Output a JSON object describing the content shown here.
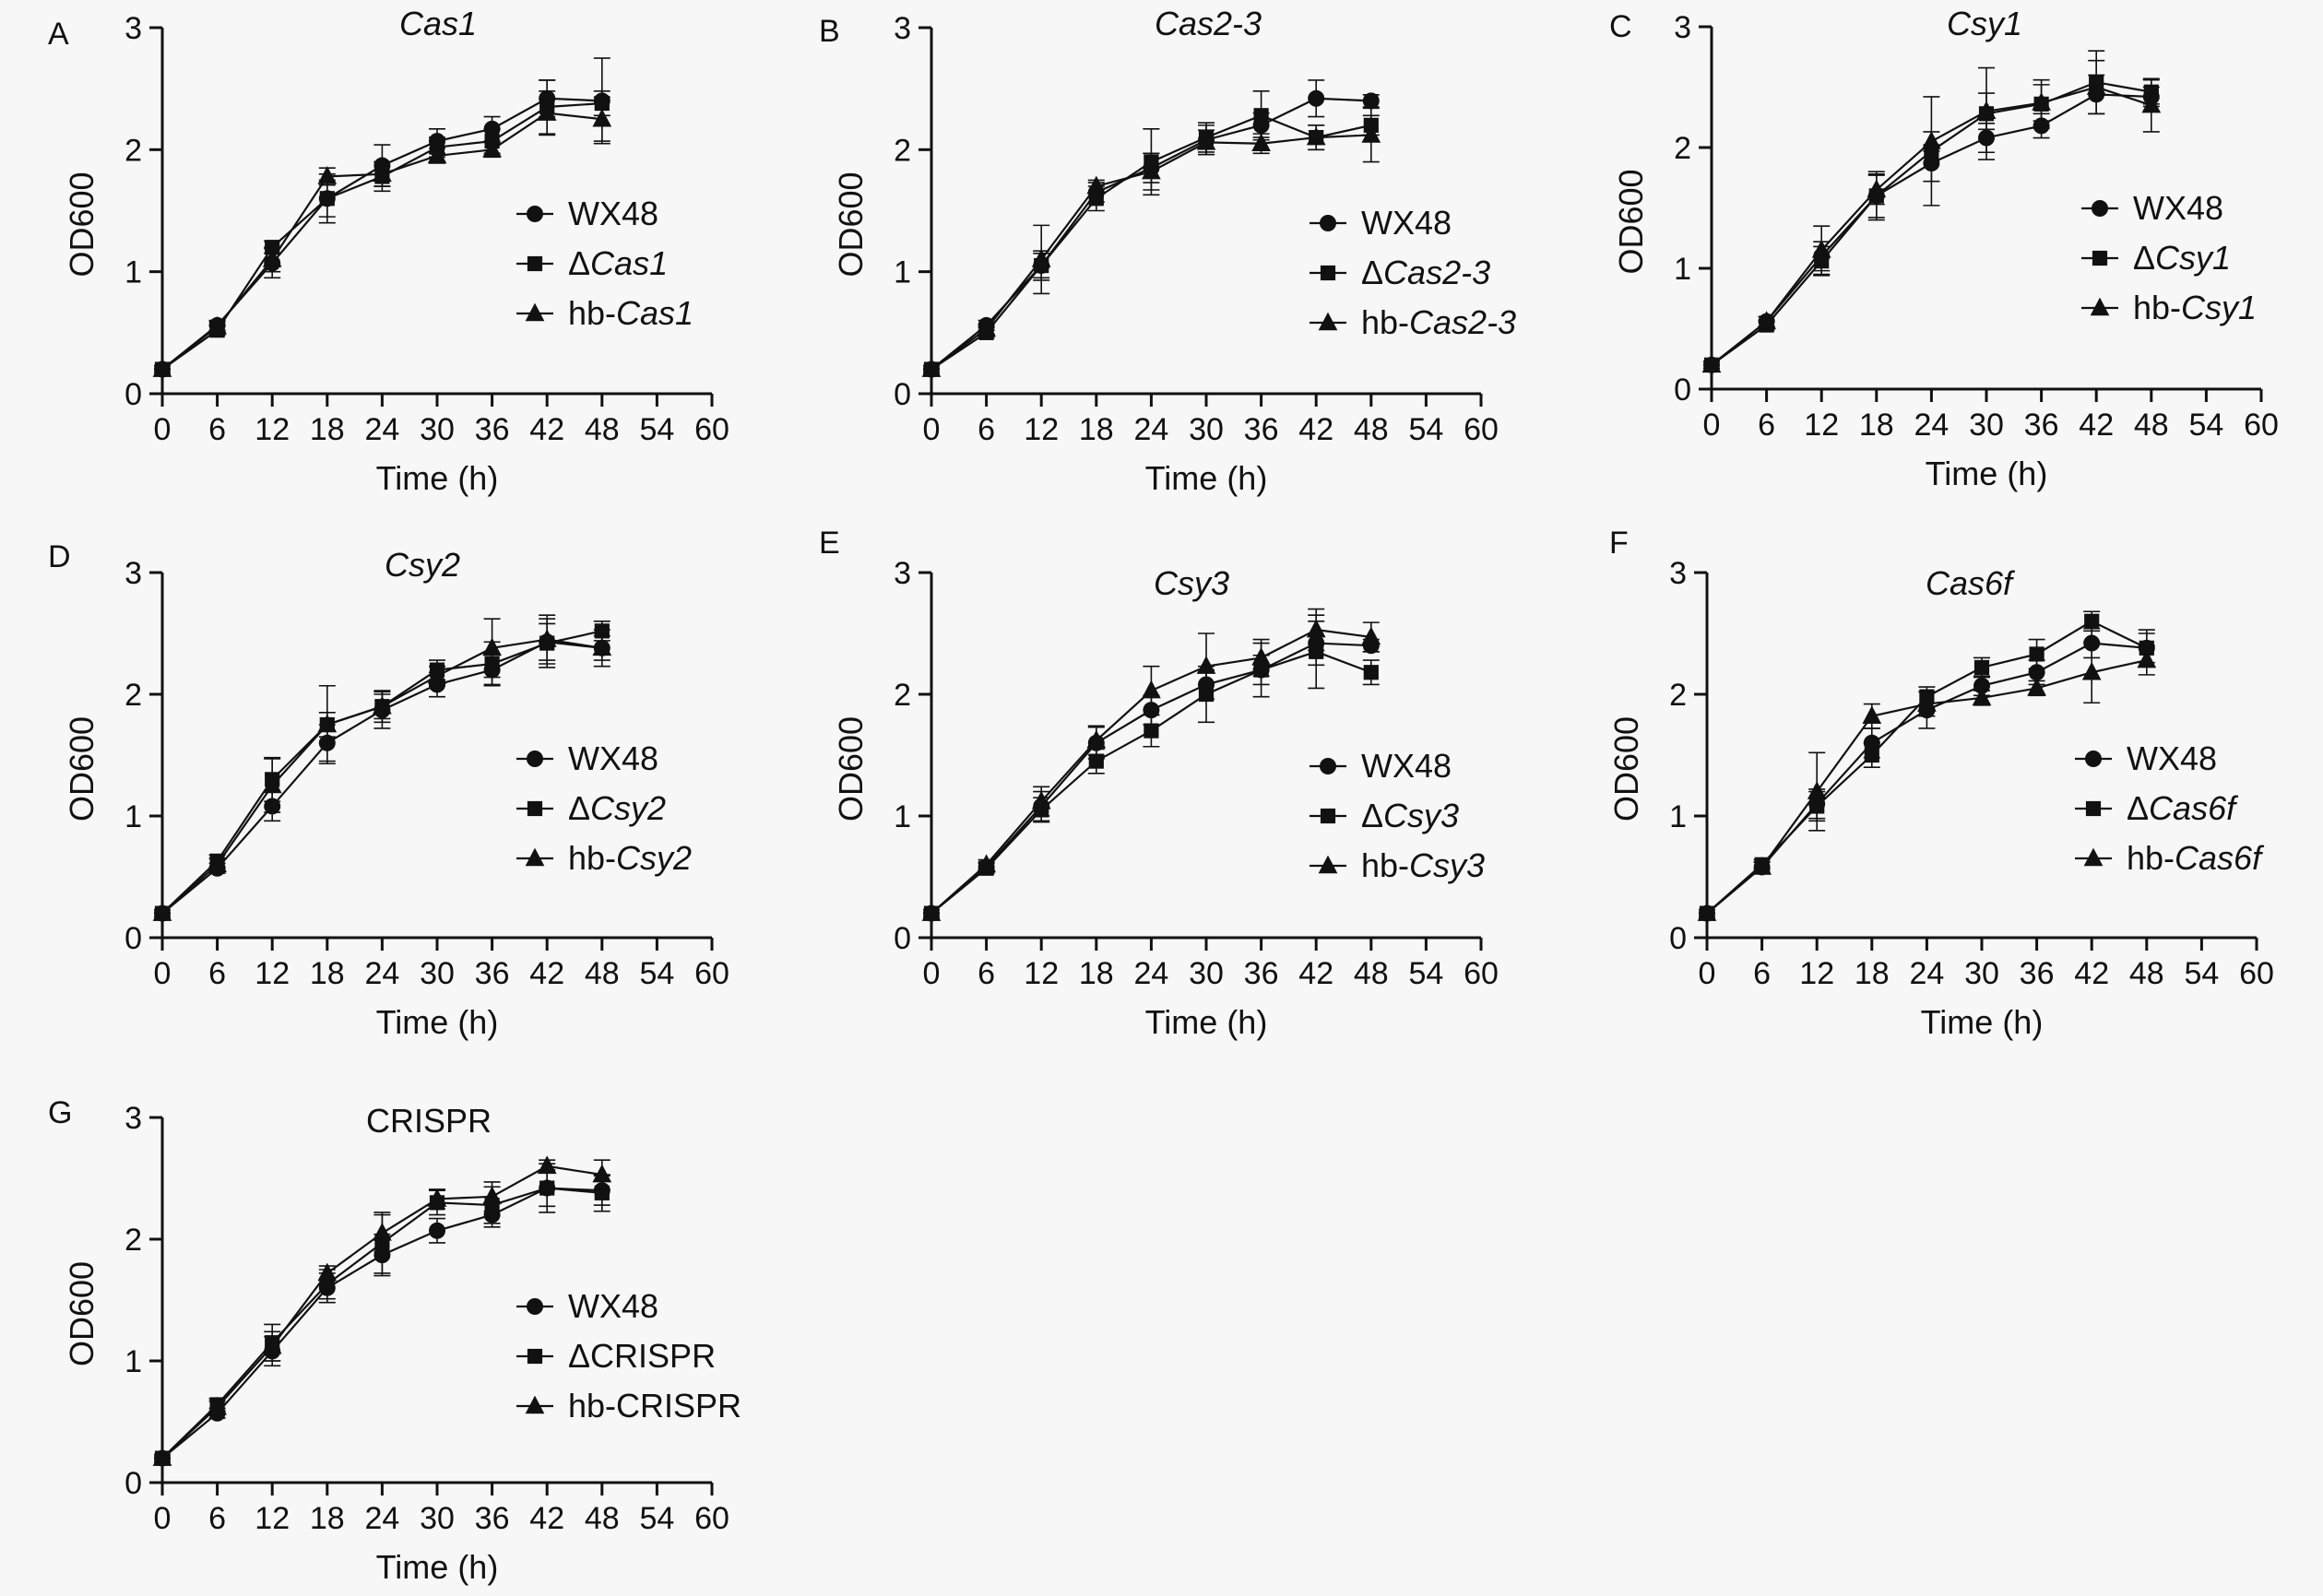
{
  "chart_data": [
    {
      "panel": "A",
      "type": "line",
      "title": "Cas1",
      "title_italic": true,
      "xlabel": "Time (h)",
      "ylabel": "OD600",
      "xlim": [
        0,
        60
      ],
      "ylim": [
        0,
        3
      ],
      "xticks": [
        0,
        6,
        12,
        18,
        24,
        30,
        36,
        42,
        48,
        54,
        60
      ],
      "yticks": [
        0,
        1,
        2,
        3
      ],
      "grid": false,
      "legend_position": "center-right",
      "x": [
        0,
        6,
        12,
        18,
        24,
        30,
        36,
        42,
        48
      ],
      "series": [
        {
          "name": "WX48",
          "prefix": "",
          "gene": "",
          "marker": "circle",
          "values": [
            0.2,
            0.56,
            1.07,
            1.6,
            1.87,
            2.07,
            2.17,
            2.42,
            2.4
          ],
          "errors": [
            0.03,
            0.04,
            0.12,
            0.2,
            0.17,
            0.1,
            0.1,
            0.15,
            0.35
          ]
        },
        {
          "name": "ΔCas1",
          "prefix": "Δ",
          "gene": "Cas1",
          "marker": "square",
          "values": [
            0.2,
            0.52,
            1.2,
            1.6,
            1.78,
            2.02,
            2.07,
            2.35,
            2.38
          ],
          "errors": [
            0.03,
            0.04,
            0.05,
            0.15,
            0.12,
            0.08,
            0.1,
            0.22,
            0.1
          ]
        },
        {
          "name": "hb-Cas1",
          "prefix": "hb-",
          "gene": "Cas1",
          "marker": "triangle",
          "values": [
            0.2,
            0.55,
            1.1,
            1.78,
            1.8,
            1.95,
            2.0,
            2.3,
            2.25
          ],
          "errors": [
            0.03,
            0.04,
            0.1,
            0.07,
            0.1,
            0.06,
            0.06,
            0.18,
            0.18
          ]
        }
      ]
    },
    {
      "panel": "B",
      "type": "line",
      "title": "Cas2-3",
      "title_italic": true,
      "xlabel": "Time (h)",
      "ylabel": "OD600",
      "xlim": [
        0,
        60
      ],
      "ylim": [
        0,
        3
      ],
      "xticks": [
        0,
        6,
        12,
        18,
        24,
        30,
        36,
        42,
        48,
        54,
        60
      ],
      "yticks": [
        0,
        1,
        2,
        3
      ],
      "grid": false,
      "legend_position": "center-right",
      "x": [
        0,
        6,
        12,
        18,
        24,
        30,
        36,
        42,
        48
      ],
      "series": [
        {
          "name": "WX48",
          "prefix": "",
          "gene": "",
          "marker": "circle",
          "values": [
            0.2,
            0.56,
            1.05,
            1.65,
            1.85,
            2.08,
            2.2,
            2.42,
            2.4
          ],
          "errors": [
            0.03,
            0.04,
            0.1,
            0.08,
            0.12,
            0.12,
            0.1,
            0.15,
            0.05
          ]
        },
        {
          "name": "ΔCas2-3",
          "prefix": "Δ",
          "gene": "Cas2-3",
          "marker": "square",
          "values": [
            0.2,
            0.5,
            1.05,
            1.6,
            1.9,
            2.1,
            2.28,
            2.1,
            2.2
          ],
          "errors": [
            0.03,
            0.04,
            0.12,
            0.1,
            0.27,
            0.12,
            0.2,
            0.1,
            0.08
          ]
        },
        {
          "name": "hb-Cas2-3",
          "prefix": "hb-",
          "gene": "Cas2-3",
          "marker": "triangle",
          "values": [
            0.2,
            0.53,
            1.1,
            1.7,
            1.82,
            2.06,
            2.05,
            2.1,
            2.12
          ],
          "errors": [
            0.03,
            0.04,
            0.28,
            0.05,
            0.15,
            0.1,
            0.08,
            0.1,
            0.22
          ]
        }
      ]
    },
    {
      "panel": "C",
      "type": "line",
      "title": "Csy1",
      "title_italic": true,
      "xlabel": "Time (h)",
      "ylabel": "OD600",
      "xlim": [
        0,
        60
      ],
      "ylim": [
        0,
        3
      ],
      "xticks": [
        0,
        6,
        12,
        18,
        24,
        30,
        36,
        42,
        48,
        54,
        60
      ],
      "yticks": [
        0,
        1,
        2,
        3
      ],
      "grid": false,
      "legend_position": "center-right",
      "x": [
        0,
        6,
        12,
        18,
        24,
        30,
        36,
        42,
        48
      ],
      "series": [
        {
          "name": "WX48",
          "prefix": "",
          "gene": "",
          "marker": "circle",
          "values": [
            0.2,
            0.56,
            1.1,
            1.6,
            1.87,
            2.08,
            2.18,
            2.44,
            2.42
          ],
          "errors": [
            0.03,
            0.04,
            0.12,
            0.2,
            0.15,
            0.12,
            0.1,
            0.16,
            0.08
          ]
        },
        {
          "name": "ΔCsy1",
          "prefix": "Δ",
          "gene": "Csy1",
          "marker": "square",
          "values": [
            0.2,
            0.53,
            1.06,
            1.6,
            1.97,
            2.28,
            2.36,
            2.54,
            2.46
          ],
          "errors": [
            0.03,
            0.04,
            0.12,
            0.18,
            0.45,
            0.38,
            0.2,
            0.26,
            0.1
          ]
        },
        {
          "name": "hb-Csy1",
          "prefix": "hb-",
          "gene": "Csy1",
          "marker": "triangle",
          "values": [
            0.2,
            0.56,
            1.15,
            1.65,
            2.05,
            2.3,
            2.37,
            2.5,
            2.35
          ],
          "errors": [
            0.03,
            0.04,
            0.2,
            0.12,
            0.08,
            0.15,
            0.15,
            0.22,
            0.22
          ]
        }
      ]
    },
    {
      "panel": "D",
      "type": "line",
      "title": "Csy2",
      "title_italic": true,
      "xlabel": "Time (h)",
      "ylabel": "OD600",
      "xlim": [
        0,
        60
      ],
      "ylim": [
        0,
        3
      ],
      "xticks": [
        0,
        6,
        12,
        18,
        24,
        30,
        36,
        42,
        48,
        54,
        60
      ],
      "yticks": [
        0,
        1,
        2,
        3
      ],
      "grid": false,
      "legend_position": "center-right",
      "x": [
        0,
        6,
        12,
        18,
        24,
        30,
        36,
        42,
        48
      ],
      "series": [
        {
          "name": "WX48",
          "prefix": "",
          "gene": "",
          "marker": "circle",
          "values": [
            0.2,
            0.57,
            1.08,
            1.6,
            1.87,
            2.08,
            2.2,
            2.43,
            2.38
          ],
          "errors": [
            0.03,
            0.04,
            0.12,
            0.15,
            0.15,
            0.1,
            0.12,
            0.15,
            0.15
          ]
        },
        {
          "name": "ΔCsy2",
          "prefix": "Δ",
          "gene": "Csy2",
          "marker": "square",
          "values": [
            0.2,
            0.63,
            1.3,
            1.75,
            1.9,
            2.2,
            2.25,
            2.42,
            2.52
          ],
          "errors": [
            0.03,
            0.05,
            0.18,
            0.32,
            0.13,
            0.08,
            0.18,
            0.2,
            0.08
          ]
        },
        {
          "name": "hb-Csy2",
          "prefix": "hb-",
          "gene": "Csy2",
          "marker": "triangle",
          "values": [
            0.2,
            0.6,
            1.25,
            1.75,
            1.9,
            2.15,
            2.38,
            2.45,
            2.38
          ],
          "errors": [
            0.03,
            0.05,
            0.22,
            0.1,
            0.1,
            0.08,
            0.24,
            0.2,
            0.1
          ]
        }
      ]
    },
    {
      "panel": "E",
      "type": "line",
      "title": "Csy3",
      "title_italic": true,
      "xlabel": "Time (h)",
      "ylabel": "OD600",
      "xlim": [
        0,
        60
      ],
      "ylim": [
        0,
        3
      ],
      "xticks": [
        0,
        6,
        12,
        18,
        24,
        30,
        36,
        42,
        48,
        54,
        60
      ],
      "yticks": [
        0,
        1,
        2,
        3
      ],
      "grid": false,
      "legend_position": "center-right",
      "x": [
        0,
        6,
        12,
        18,
        24,
        30,
        36,
        42,
        48
      ],
      "series": [
        {
          "name": "WX48",
          "prefix": "",
          "gene": "",
          "marker": "circle",
          "values": [
            0.2,
            0.58,
            1.08,
            1.6,
            1.87,
            2.08,
            2.2,
            2.42,
            2.4
          ],
          "errors": [
            0.03,
            0.04,
            0.12,
            0.13,
            0.12,
            0.12,
            0.12,
            0.18,
            0.05
          ]
        },
        {
          "name": "ΔCsy3",
          "prefix": "Δ",
          "gene": "Csy3",
          "marker": "square",
          "values": [
            0.2,
            0.57,
            1.05,
            1.45,
            1.7,
            2.0,
            2.2,
            2.35,
            2.18
          ],
          "errors": [
            0.03,
            0.04,
            0.1,
            0.1,
            0.13,
            0.23,
            0.22,
            0.3,
            0.1
          ]
        },
        {
          "name": "hb-Csy3",
          "prefix": "hb-",
          "gene": "Csy3",
          "marker": "triangle",
          "values": [
            0.2,
            0.6,
            1.12,
            1.62,
            2.03,
            2.23,
            2.3,
            2.53,
            2.47
          ],
          "errors": [
            0.03,
            0.04,
            0.12,
            0.12,
            0.2,
            0.27,
            0.15,
            0.17,
            0.12
          ]
        }
      ]
    },
    {
      "panel": "F",
      "type": "line",
      "title": "Cas6f",
      "title_italic": true,
      "xlabel": "Time (h)",
      "ylabel": "OD600",
      "xlim": [
        0,
        60
      ],
      "ylim": [
        0,
        3
      ],
      "xticks": [
        0,
        6,
        12,
        18,
        24,
        30,
        36,
        42,
        48,
        54,
        60
      ],
      "yticks": [
        0,
        1,
        2,
        3
      ],
      "grid": false,
      "legend_position": "center-right",
      "x": [
        0,
        6,
        12,
        18,
        24,
        30,
        36,
        42,
        48
      ],
      "series": [
        {
          "name": "WX48",
          "prefix": "",
          "gene": "",
          "marker": "circle",
          "values": [
            0.2,
            0.58,
            1.1,
            1.6,
            1.87,
            2.07,
            2.18,
            2.42,
            2.38
          ],
          "errors": [
            0.03,
            0.04,
            0.12,
            0.12,
            0.15,
            0.08,
            0.1,
            0.12,
            0.15
          ]
        },
        {
          "name": "ΔCas6f",
          "prefix": "Δ",
          "gene": "Cas6f",
          "marker": "square",
          "values": [
            0.2,
            0.6,
            1.08,
            1.5,
            1.98,
            2.22,
            2.33,
            2.6,
            2.38
          ],
          "errors": [
            0.03,
            0.04,
            0.12,
            0.1,
            0.08,
            0.08,
            0.12,
            0.08,
            0.12
          ]
        },
        {
          "name": "hb-Cas6f",
          "prefix": "hb-",
          "gene": "Cas6f",
          "marker": "triangle",
          "values": [
            0.2,
            0.58,
            1.2,
            1.82,
            1.92,
            1.97,
            2.05,
            2.18,
            2.28
          ],
          "errors": [
            0.03,
            0.04,
            0.32,
            0.1,
            0.1,
            0.06,
            0.06,
            0.25,
            0.12
          ]
        }
      ]
    },
    {
      "panel": "G",
      "type": "line",
      "title": "CRISPR",
      "title_italic": false,
      "xlabel": "Time (h)",
      "ylabel": "OD600",
      "xlim": [
        0,
        60
      ],
      "ylim": [
        0,
        3
      ],
      "xticks": [
        0,
        6,
        12,
        18,
        24,
        30,
        36,
        42,
        48,
        54,
        60
      ],
      "yticks": [
        0,
        1,
        2,
        3
      ],
      "grid": false,
      "legend_position": "center-right",
      "x": [
        0,
        6,
        12,
        18,
        24,
        30,
        36,
        42,
        48
      ],
      "series": [
        {
          "name": "WX48",
          "prefix": "",
          "gene": "",
          "marker": "circle",
          "values": [
            0.2,
            0.57,
            1.08,
            1.6,
            1.87,
            2.07,
            2.2,
            2.42,
            2.4
          ],
          "errors": [
            0.03,
            0.04,
            0.12,
            0.12,
            0.17,
            0.1,
            0.1,
            0.15,
            0.12
          ]
        },
        {
          "name": "ΔCRISPR",
          "prefix": "Δ",
          "gene": "CRISPR",
          "marker": "square",
          "values": [
            0.2,
            0.64,
            1.15,
            1.63,
            1.97,
            2.3,
            2.28,
            2.42,
            2.38
          ],
          "errors": [
            0.03,
            0.05,
            0.15,
            0.12,
            0.25,
            0.1,
            0.15,
            0.2,
            0.15
          ]
        },
        {
          "name": "hb-CRISPR",
          "prefix": "hb-",
          "gene": "CRISPR",
          "marker": "triangle",
          "values": [
            0.2,
            0.62,
            1.12,
            1.72,
            2.05,
            2.33,
            2.35,
            2.6,
            2.53
          ],
          "errors": [
            0.03,
            0.05,
            0.12,
            0.06,
            0.15,
            0.08,
            0.12,
            0.05,
            0.12
          ]
        }
      ]
    }
  ]
}
